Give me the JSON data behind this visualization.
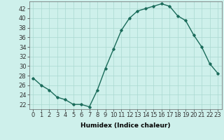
{
  "x": [
    0,
    1,
    2,
    3,
    4,
    5,
    6,
    7,
    8,
    9,
    10,
    11,
    12,
    13,
    14,
    15,
    16,
    17,
    18,
    19,
    20,
    21,
    22,
    23
  ],
  "y": [
    27.5,
    26,
    25,
    23.5,
    23,
    22,
    22,
    21.5,
    25,
    29.5,
    33.5,
    37.5,
    40,
    41.5,
    42,
    42.5,
    43,
    42.5,
    40.5,
    39.5,
    36.5,
    34,
    30.5,
    28.5
  ],
  "line_color": "#1a6b5a",
  "marker": "D",
  "marker_size": 1.8,
  "bg_color": "#cef0eb",
  "grid_color": "#aad8d0",
  "xlabel": "Humidex (Indice chaleur)",
  "ylabel_ticks": [
    22,
    24,
    26,
    28,
    30,
    32,
    34,
    36,
    38,
    40,
    42
  ],
  "ylim": [
    21.0,
    43.5
  ],
  "xlim": [
    -0.5,
    23.5
  ],
  "xlabel_fontsize": 6.5,
  "tick_fontsize": 6.0,
  "linewidth": 1.0
}
